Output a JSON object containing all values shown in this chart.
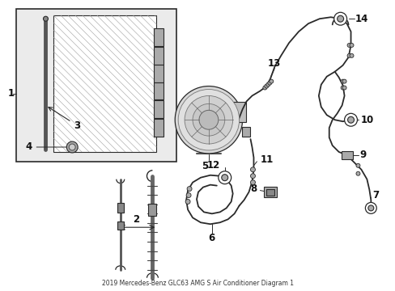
{
  "bg_color": "#ffffff",
  "line_color": "#2a2a2a",
  "label_color": "#111111",
  "hatch_color": "#999999",
  "part_fill": "#e0e0e0",
  "font_size": 8.5
}
